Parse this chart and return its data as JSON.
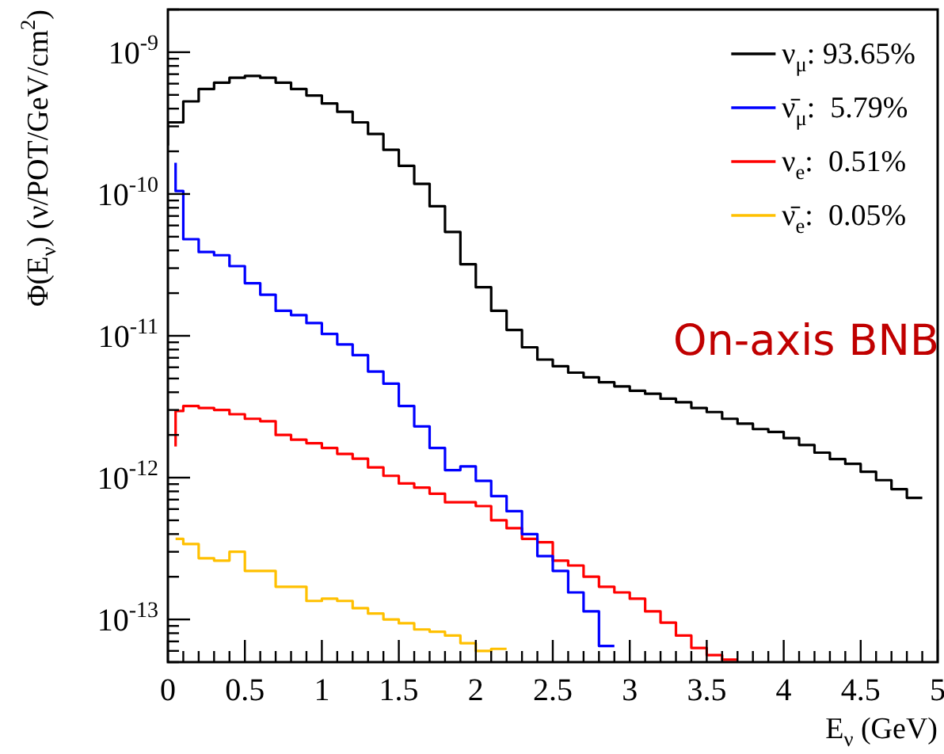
{
  "chart_data": {
    "type": "step",
    "xlabel": "E$_{ν}$ (GeV)",
    "ylabel": "Φ(E$_{ν}$) (ν/POT/GeV/cm$^{2}$)",
    "x": [
      0,
      0.1,
      0.2,
      0.3,
      0.4,
      0.5,
      0.6,
      0.7,
      0.8,
      0.9,
      1,
      1.1,
      1.2,
      1.3,
      1.4,
      1.5,
      1.6,
      1.7,
      1.8,
      1.9,
      2,
      2.1,
      2.2,
      2.3,
      2.4,
      2.5,
      2.6,
      2.7,
      2.8,
      2.9,
      3,
      3.1,
      3.2,
      3.3,
      3.4,
      3.5,
      3.6,
      3.7,
      3.8,
      3.9,
      4,
      4.1,
      4.2,
      4.3,
      4.4,
      4.5,
      4.6,
      4.7,
      4.8,
      4.9
    ],
    "series": [
      {
        "name": "ν$_{μ}$: 93.65%",
        "color": "#000000",
        "values": [
          2.2e-10,
          3.2e-10,
          4.5e-10,
          5.5e-10,
          6.1e-10,
          6.6e-10,
          6.8e-10,
          6.6e-10,
          6.1e-10,
          5.5e-10,
          4.95e-10,
          4.35e-10,
          3.8e-10,
          3.2e-10,
          2.65e-10,
          2.05e-10,
          1.58e-10,
          1.18e-10,
          8.2e-11,
          5.4e-11,
          3.2e-11,
          2.2e-11,
          1.5e-11,
          1.1e-11,
          8.3e-12,
          6.8e-12,
          6.1e-12,
          5.5e-12,
          5.1e-12,
          4.7e-12,
          4.4e-12,
          4.1e-12,
          3.9e-12,
          3.6e-12,
          3.4e-12,
          3.1e-12,
          2.9e-12,
          2.6e-12,
          2.4e-12,
          2.2e-12,
          2.1e-12,
          1.9e-12,
          1.7e-12,
          1.5e-12,
          1.35e-12,
          1.25e-12,
          1.1e-12,
          9.6e-13,
          8.3e-13,
          7.2e-13
        ]
      },
      {
        "name": "ν̄$_{μ}$:  5.79%",
        "color": "#0000ff",
        "x": [
          0.05,
          0.1,
          0.2,
          0.3,
          0.4,
          0.5,
          0.6,
          0.7,
          0.8,
          0.9,
          1,
          1.1,
          1.2,
          1.3,
          1.4,
          1.5,
          1.6,
          1.7,
          1.8,
          1.9,
          2,
          2.1,
          2.2,
          2.3,
          2.4,
          2.5,
          2.6,
          2.7,
          2.8,
          2.9
        ],
        "values": [
          1.66e-10,
          1.05e-10,
          4.8e-11,
          3.9e-11,
          3.7e-11,
          3.1e-11,
          2.35e-11,
          1.95e-11,
          1.5e-11,
          1.4e-11,
          1.23e-11,
          1.03e-11,
          8.7e-12,
          7.3e-12,
          5.6e-12,
          4.6e-12,
          3.2e-12,
          2.3e-12,
          1.62e-12,
          1.13e-12,
          1.2e-12,
          9.5e-13,
          7.4e-13,
          5.8e-13,
          4e-13,
          2.8e-13,
          2.2e-13,
          1.55e-13,
          1.14e-13,
          6.5e-14
        ]
      },
      {
        "name": "ν$_{e}$:  0.51%",
        "color": "#ff0000",
        "x": [
          0.05,
          0.1,
          0.2,
          0.3,
          0.4,
          0.5,
          0.6,
          0.7,
          0.8,
          0.9,
          1,
          1.1,
          1.2,
          1.3,
          1.4,
          1.5,
          1.6,
          1.7,
          1.8,
          1.9,
          2,
          2.1,
          2.2,
          2.3,
          2.4,
          2.5,
          2.6,
          2.7,
          2.8,
          2.9,
          3,
          3.1,
          3.2,
          3.3,
          3.4,
          3.5,
          3.6,
          3.7
        ],
        "values": [
          1.66e-12,
          2.95e-12,
          3.2e-12,
          3.1e-12,
          3e-12,
          2.8e-12,
          2.6e-12,
          2.5e-12,
          2e-12,
          1.85e-12,
          1.75e-12,
          1.62e-12,
          1.47e-12,
          1.36e-12,
          1.18e-12,
          1.03e-12,
          9.1e-13,
          8.5e-13,
          7.7e-13,
          6.7e-13,
          6.7e-13,
          6.3e-13,
          5e-13,
          4.4e-13,
          3.7e-13,
          3.5e-13,
          2.6e-13,
          2.4e-13,
          2e-13,
          1.7e-13,
          1.55e-13,
          1.4e-13,
          1.14e-13,
          9.5e-14,
          7.7e-14,
          6.3e-14,
          5.6e-14,
          5.2e-14
        ]
      },
      {
        "name": "ν̄$_{e}$:  0.05%",
        "color": "#ffc000",
        "x": [
          0.05,
          0.1,
          0.2,
          0.3,
          0.4,
          0.5,
          0.6,
          0.7,
          0.8,
          0.9,
          1,
          1.1,
          1.2,
          1.3,
          1.4,
          1.5,
          1.6,
          1.7,
          1.8,
          1.9,
          2,
          2.1,
          2.2
        ],
        "values": [
          3.7e-13,
          3.7e-13,
          3.4e-13,
          2.7e-13,
          2.6e-13,
          3e-13,
          2.2e-13,
          2.2e-13,
          1.7e-13,
          1.7e-13,
          1.35e-13,
          1.4e-13,
          1.35e-13,
          1.2e-13,
          1.1e-13,
          1e-13,
          9.4e-14,
          8.5e-14,
          8.2e-14,
          7.7e-14,
          6.8e-14,
          6e-14,
          6.2e-14
        ]
      }
    ],
    "xlim": [
      0,
      5
    ],
    "xticks": [
      0,
      0.5,
      1,
      1.5,
      2,
      2.5,
      3,
      3.5,
      4,
      4.5,
      5
    ],
    "ylim": [
      5e-14,
      2e-09
    ],
    "yticks": [
      {
        "value": 1e-13,
        "label": "10$^{-13}$"
      },
      {
        "value": 1e-12,
        "label": "10$^{-12}$"
      },
      {
        "value": 1e-11,
        "label": "10$^{-11}$"
      },
      {
        "value": 1e-10,
        "label": "10$^{-10}$"
      },
      {
        "value": 1e-09,
        "label": "10$^{-9}$"
      }
    ],
    "log": "y",
    "marker": "none",
    "legend": "top right",
    "grid": false,
    "annotations": [
      "On-axis BNB"
    ]
  }
}
